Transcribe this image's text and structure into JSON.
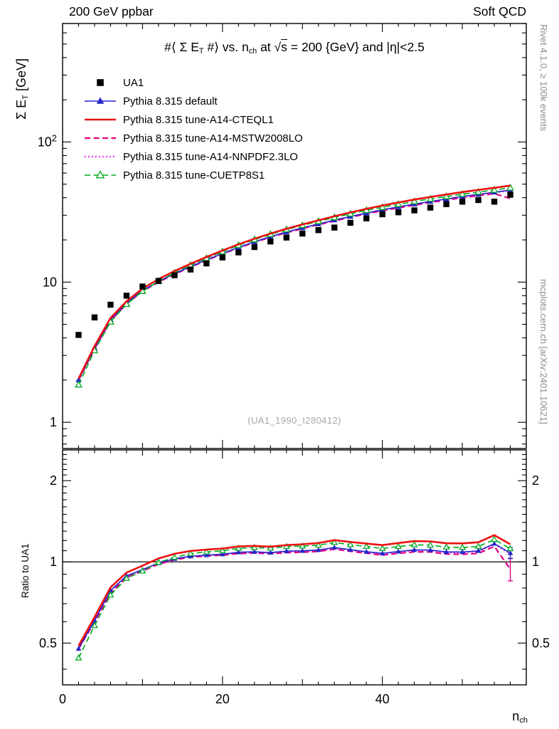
{
  "header": {
    "left": "200 GeV ppbar",
    "right": "Soft QCD"
  },
  "side_texts": {
    "top_right": "Rivet 4.1.0, ≥ 100k events",
    "bottom_right": "mcplots.cern.ch [arXiv:2401.10621]"
  },
  "main_plot": {
    "title_parts": [
      {
        "t": "#⟨ Σ E"
      },
      {
        "t": "T",
        "sub": true
      },
      {
        "t": " #⟩ vs. n"
      },
      {
        "t": "ch",
        "sub": true
      },
      {
        "t": " at √"
      },
      {
        "t": "s",
        "overline": true
      },
      {
        "t": " = 200 {GeV} and |η|<2.5"
      }
    ],
    "ylabel_parts": [
      {
        "t": "Σ E"
      },
      {
        "t": "T",
        "sub": true
      },
      {
        "t": " [GeV]"
      }
    ],
    "watermark": "(UA1_1990_I280412)"
  },
  "ratio_plot": {
    "ylabel": "Ratio to UA1"
  },
  "xlabel_parts": [
    {
      "t": "n"
    },
    {
      "t": "ch",
      "sub": true
    }
  ],
  "chart_data": {
    "type": "line",
    "title": "⟨Σ ET⟩ vs. nch at √s = 200 GeV and |η|<2.5",
    "xlabel": "nch",
    "ylabel": "Σ ET [GeV]",
    "ratio_ylabel": "Ratio to UA1",
    "legend_position": "top-left",
    "grid": false,
    "x_scale": "linear",
    "y_scale": "log",
    "ratio_y_scale": "log",
    "xlim": [
      0,
      58
    ],
    "main_ylim": [
      0.65,
      700
    ],
    "ratio_ylim": [
      0.35,
      2.6
    ],
    "x_major_ticks": [
      0,
      20,
      40
    ],
    "x_major_labels": [
      "0",
      "20",
      "40"
    ],
    "x_medium_ticks": [
      10,
      30,
      50
    ],
    "x_minor_step": 2,
    "main_y_major": [
      {
        "value": 1,
        "label": "1"
      },
      {
        "value": 10,
        "label": "10"
      },
      {
        "value": 100,
        "label": "10^2"
      }
    ],
    "ratio_y_major": [
      {
        "value": 0.5,
        "label": "0.5"
      },
      {
        "value": 1,
        "label": "1"
      },
      {
        "value": 2,
        "label": "2"
      }
    ],
    "ratio_reference": 1,
    "x": [
      2,
      4,
      6,
      8,
      10,
      12,
      14,
      16,
      18,
      20,
      22,
      24,
      26,
      28,
      30,
      32,
      34,
      36,
      38,
      40,
      42,
      44,
      46,
      48,
      50,
      52,
      54,
      56
    ],
    "series": [
      {
        "name": "UA1",
        "role": "data",
        "is_reference": true,
        "color": "#000000",
        "line": false,
        "dash": "solid",
        "width": 0,
        "marker": "square-filled",
        "values": [
          4.2,
          5.6,
          6.9,
          8.0,
          9.3,
          10.2,
          11.2,
          12.3,
          13.6,
          15.0,
          16.3,
          17.8,
          19.5,
          20.8,
          22.2,
          23.5,
          24.5,
          26.5,
          28.5,
          30.5,
          31.5,
          32.5,
          34.0,
          36.0,
          37.5,
          38.5,
          37.5,
          42.0
        ]
      },
      {
        "name": "Pythia 8.315 default",
        "color": "#2424cc",
        "line": true,
        "dash": "solid",
        "width": 1.6,
        "marker": "triangle-filled",
        "ratio_last_error": 0.05,
        "values": [
          2.0,
          3.4,
          5.4,
          7.1,
          8.7,
          10.1,
          11.5,
          12.9,
          14.4,
          16.0,
          17.7,
          19.4,
          21.1,
          22.8,
          24.4,
          26.0,
          27.7,
          29.4,
          31.1,
          32.8,
          34.4,
          36.0,
          37.6,
          39.2,
          40.8,
          42.3,
          43.8,
          45.3
        ]
      },
      {
        "name": "Pythia 8.315 tune-A14-CTEQL1",
        "color": "#ee1111",
        "line": true,
        "dash": "solid",
        "width": 2.6,
        "marker": "none",
        "values": [
          2.05,
          3.5,
          5.55,
          7.3,
          9.0,
          10.5,
          12.0,
          13.5,
          15.1,
          16.8,
          18.6,
          20.4,
          22.2,
          24.0,
          25.8,
          27.6,
          29.5,
          31.4,
          33.3,
          35.2,
          37.0,
          38.8,
          40.5,
          42.2,
          43.9,
          45.5,
          47.1,
          48.8
        ]
      },
      {
        "name": "Pythia 8.315 tune-A14-MSTW2008LO",
        "color": "#e00084",
        "line": true,
        "dash": "dashed",
        "width": 2.2,
        "marker": "none",
        "ratio_last_error": 0.09,
        "values": [
          2.0,
          3.35,
          5.3,
          7.0,
          8.6,
          10.0,
          11.4,
          12.8,
          14.3,
          15.9,
          17.5,
          19.2,
          20.9,
          22.5,
          24.1,
          25.7,
          27.3,
          29.0,
          30.7,
          32.3,
          33.9,
          35.4,
          37.0,
          38.5,
          40.0,
          41.4,
          42.8,
          39.5
        ]
      },
      {
        "name": "Pythia 8.315 tune-A14-NNPDF2.3LO",
        "color": "#ee00ee",
        "line": true,
        "dash": "dotted",
        "width": 2.2,
        "marker": "none",
        "values": [
          2.0,
          3.4,
          5.4,
          7.1,
          8.7,
          10.1,
          11.5,
          12.9,
          14.4,
          16.0,
          17.6,
          19.3,
          21.0,
          22.7,
          24.3,
          25.9,
          27.6,
          29.3,
          31.0,
          32.7,
          34.3,
          35.9,
          37.5,
          39.0,
          40.6,
          42.1,
          43.6,
          45.0
        ]
      },
      {
        "name": "Pythia 8.315 tune-CUETP8S1",
        "color": "#00aa22",
        "line": true,
        "dash": "dashed",
        "width": 1.6,
        "marker": "triangle-open",
        "values": [
          1.85,
          3.25,
          5.2,
          6.95,
          8.6,
          10.15,
          11.65,
          13.2,
          14.8,
          16.5,
          18.3,
          20.1,
          21.9,
          23.7,
          25.4,
          27.1,
          28.9,
          30.7,
          32.5,
          34.2,
          35.9,
          37.6,
          39.2,
          40.8,
          42.4,
          43.9,
          45.4,
          47.0
        ]
      }
    ]
  }
}
